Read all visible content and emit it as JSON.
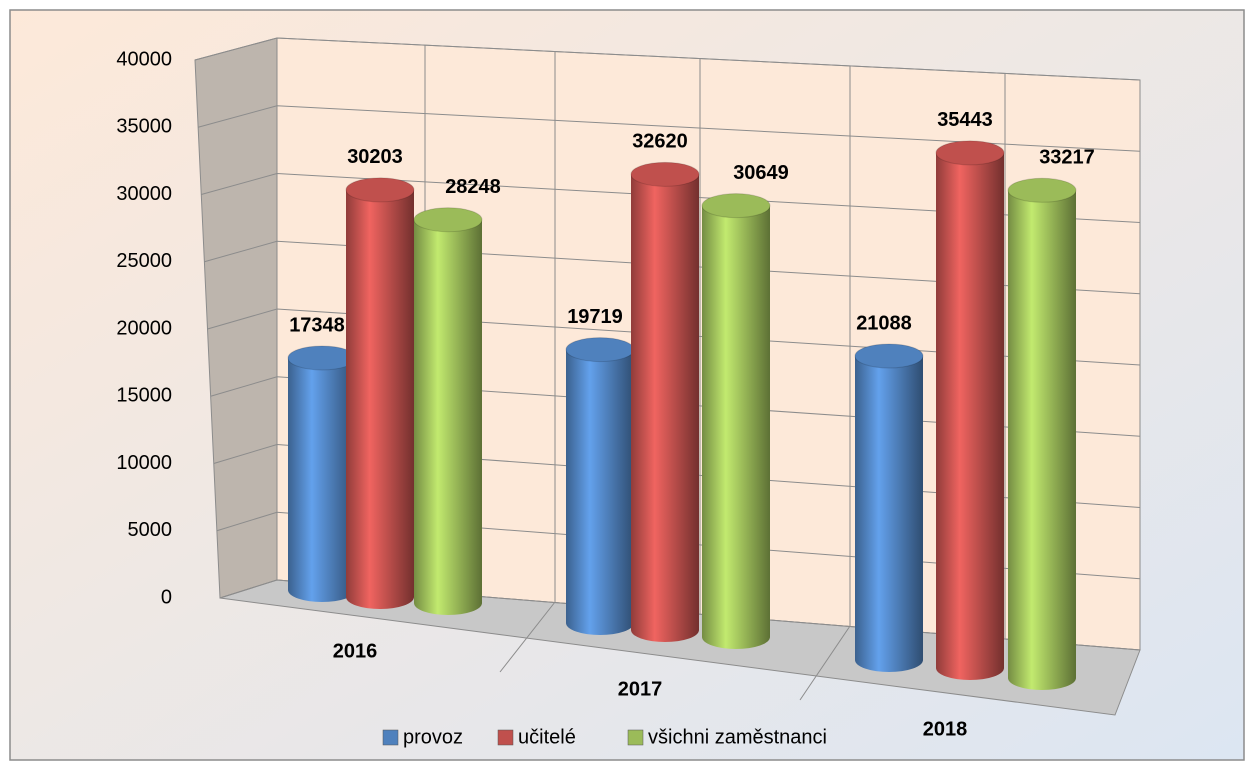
{
  "chart_data": {
    "type": "bar3d-cylinder",
    "categories": [
      "2016",
      "2017",
      "2018"
    ],
    "series": [
      {
        "name": "provoz",
        "color": "#4f81bd",
        "values": [
          17348,
          19719,
          21088
        ]
      },
      {
        "name": "učitelé",
        "color": "#c0504d",
        "values": [
          30203,
          32620,
          35443
        ]
      },
      {
        "name": "všichni zaměstnanci",
        "color": "#9bbb59",
        "values": [
          28248,
          30649,
          33217
        ]
      }
    ],
    "ylim": [
      0,
      40000
    ],
    "yticks": [
      0,
      5000,
      10000,
      15000,
      20000,
      25000,
      30000,
      35000,
      40000
    ],
    "grid": true,
    "legend": "bottom"
  }
}
